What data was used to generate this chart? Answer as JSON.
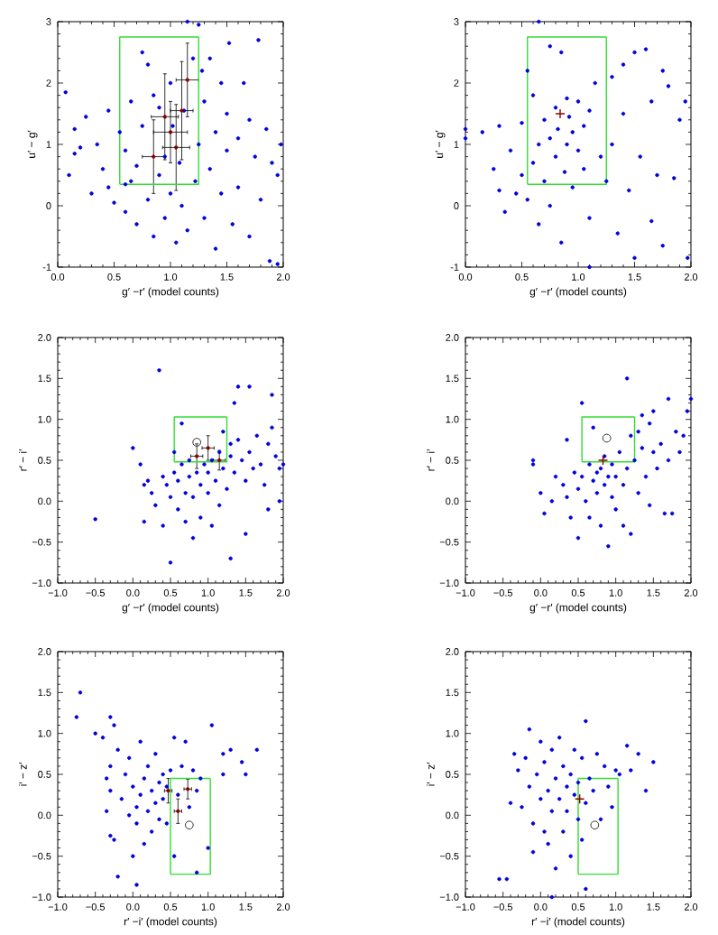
{
  "chart_data": [
    {
      "type": "scatter",
      "xlabel": "g′ −r′ (model counts)",
      "ylabel": "u′ − g′",
      "xlim": [
        0,
        2
      ],
      "ylim": [
        -1,
        3
      ],
      "xticks": [
        {
          "value": 0,
          "label": "0.0"
        },
        {
          "value": 0.5,
          "label": "0.5"
        },
        {
          "value": 1,
          "label": "1.0"
        },
        {
          "value": 1.5,
          "label": "1.5"
        },
        {
          "value": 2,
          "label": "2.0"
        }
      ],
      "yticks": [
        -1,
        0,
        1,
        2,
        3
      ],
      "series": [
        {
          "type": "scatter",
          "color": "#0000dd",
          "marker": "circle",
          "x": [
            0.07,
            0.15,
            0.15,
            0.2,
            0.1,
            0.25,
            0.3,
            0.35,
            0.4,
            0.45,
            0.45,
            0.5,
            0.55,
            0.6,
            0.6,
            0.65,
            0.65,
            0.7,
            0.7,
            0.75,
            0.75,
            0.8,
            0.8,
            0.85,
            0.85,
            0.9,
            0.9,
            0.95,
            0.95,
            1.0,
            1.0,
            1.02,
            1.05,
            1.08,
            1.1,
            1.12,
            1.15,
            1.2,
            1.22,
            1.25,
            1.28,
            1.3,
            1.3,
            1.35,
            1.35,
            1.4,
            1.4,
            1.45,
            1.45,
            1.5,
            1.5,
            1.52,
            1.55,
            1.6,
            1.6,
            1.65,
            1.7,
            1.7,
            1.75,
            1.78,
            1.8,
            1.85,
            1.88,
            1.9,
            1.95,
            1.98,
            1.15,
            1.25,
            1.95,
            0.6
          ],
          "values": [
            1.85,
            1.25,
            0.85,
            0.95,
            0.5,
            1.45,
            0.2,
            1.0,
            0.6,
            1.55,
            0.3,
            0.05,
            1.2,
            0.9,
            -0.1,
            1.7,
            0.4,
            -0.3,
            0.65,
            1.3,
            2.5,
            0.1,
            2.3,
            1.8,
            -0.5,
            0.5,
            1.6,
            0.8,
            -0.2,
            0.2,
            2.0,
            1.3,
            -0.6,
            0.7,
            0.0,
            1.55,
            -0.4,
            2.4,
            0.4,
            1.0,
            2.2,
            -0.2,
            1.7,
            0.6,
            2.4,
            1.2,
            -0.7,
            2.0,
            0.2,
            1.5,
            0.9,
            2.65,
            -0.3,
            1.1,
            0.3,
            2.0,
            1.4,
            -0.5,
            0.8,
            2.7,
            0.1,
            1.25,
            -0.9,
            0.7,
            0.5,
            1.0,
            3.0,
            2.95,
            -0.95,
            0.35
          ]
        },
        {
          "type": "scatter",
          "color": "#8b0000",
          "marker": "circle",
          "x": [
            0.85,
            0.95,
            1.05,
            1.15,
            1.0,
            1.1
          ],
          "values": [
            0.8,
            1.45,
            0.95,
            2.05,
            1.2,
            1.55
          ],
          "errors": [
            0.6,
            0.7,
            0.7,
            0.6,
            0.5,
            0.8
          ],
          "xerrors": [
            0.1,
            0.12,
            0.12,
            0.1,
            0.15,
            0.1
          ]
        },
        {
          "type": "line",
          "color": "#33dd33",
          "x": [
            0.55,
            1.25,
            1.25
          ],
          "values": [
            0.35,
            0.35,
            2.75
          ]
        },
        {
          "type": "line",
          "color": "#33dd33",
          "x": [
            1.25,
            0.55,
            0.55
          ],
          "values": [
            2.75,
            2.75,
            0.35
          ]
        }
      ]
    },
    {
      "type": "scatter",
      "xlabel": "g′ −r′ (model counts)",
      "ylabel": "u′ − g′",
      "xlim": [
        0,
        2
      ],
      "ylim": [
        -1,
        3
      ],
      "xticks": [
        {
          "value": 0,
          "label": "0.0"
        },
        {
          "value": 0.5,
          "label": "0.5"
        },
        {
          "value": 1,
          "label": "1.0"
        },
        {
          "value": 1.5,
          "label": "1.5"
        },
        {
          "value": 2,
          "label": "2.0"
        }
      ],
      "yticks": [
        -1,
        0,
        1,
        2,
        3
      ],
      "series": [
        {
          "type": "scatter",
          "color": "#0000dd",
          "marker": "circle",
          "x": [
            0.0,
            0.0,
            0.15,
            0.25,
            0.3,
            0.3,
            0.35,
            0.4,
            0.45,
            0.5,
            0.5,
            0.55,
            0.55,
            0.6,
            0.6,
            0.65,
            0.65,
            0.7,
            0.7,
            0.75,
            0.75,
            0.75,
            0.8,
            0.8,
            0.82,
            0.85,
            0.85,
            0.88,
            0.9,
            0.9,
            0.92,
            0.95,
            0.95,
            1.0,
            1.0,
            1.05,
            1.05,
            1.1,
            1.1,
            1.15,
            1.2,
            1.25,
            1.3,
            1.3,
            1.35,
            1.4,
            1.4,
            1.45,
            1.5,
            1.5,
            1.55,
            1.6,
            1.65,
            1.65,
            1.7,
            1.75,
            1.75,
            1.8,
            1.85,
            1.9,
            1.95,
            1.97,
            0.65,
            1.1
          ],
          "values": [
            1.25,
            1.1,
            1.2,
            0.6,
            0.25,
            1.3,
            -0.1,
            0.9,
            0.2,
            1.35,
            0.5,
            2.2,
            0.1,
            1.8,
            0.7,
            1.0,
            -0.3,
            1.4,
            0.4,
            2.6,
            1.1,
            0.0,
            1.6,
            0.8,
            1.25,
            2.5,
            -0.6,
            0.55,
            1.75,
            1.0,
            1.45,
            0.3,
            1.2,
            1.7,
            0.9,
            1.3,
            0.6,
            1.55,
            -0.2,
            2.0,
            0.8,
            0.4,
            2.1,
            1.0,
            -0.45,
            1.5,
            2.3,
            0.25,
            2.5,
            -0.85,
            0.8,
            2.55,
            1.7,
            -0.25,
            0.5,
            2.2,
            -0.65,
            1.95,
            0.45,
            1.4,
            1.7,
            -0.85,
            3.0,
            -1.0
          ]
        },
        {
          "type": "scatter",
          "color": "#8b0000",
          "marker": "cross",
          "x": [
            0.84
          ],
          "values": [
            1.5
          ]
        },
        {
          "type": "line",
          "color": "#33dd33",
          "x": [
            0.55,
            1.25,
            1.25
          ],
          "values": [
            0.35,
            0.35,
            2.75
          ]
        },
        {
          "type": "line",
          "color": "#33dd33",
          "x": [
            1.25,
            0.55,
            0.55
          ],
          "values": [
            2.75,
            2.75,
            0.35
          ]
        }
      ]
    },
    {
      "type": "scatter",
      "xlabel": "g′ −r′ (model counts)",
      "ylabel": "r′ − i′",
      "xlim": [
        -1,
        2
      ],
      "ylim": [
        -1,
        2
      ],
      "xticks": [
        {
          "value": -1,
          "label": "−1.0"
        },
        {
          "value": -0.5,
          "label": "−0.5"
        },
        {
          "value": 0,
          "label": "0.0"
        },
        {
          "value": 0.5,
          "label": "0.5"
        },
        {
          "value": 1,
          "label": "1.0"
        },
        {
          "value": 1.5,
          "label": "1.5"
        },
        {
          "value": 2,
          "label": "2.0"
        }
      ],
      "yticks": [
        {
          "value": -1,
          "label": "−1.0"
        },
        {
          "value": -0.5,
          "label": "−0.5"
        },
        {
          "value": 0,
          "label": "0.0"
        },
        {
          "value": 0.5,
          "label": "0.5"
        },
        {
          "value": 1,
          "label": "1.0"
        },
        {
          "value": 1.5,
          "label": "1.5"
        },
        {
          "value": 2,
          "label": "2.0"
        }
      ],
      "series": [
        {
          "type": "scatter",
          "color": "#0000dd",
          "marker": "circle",
          "x": [
            -0.5,
            0.0,
            0.1,
            0.15,
            0.15,
            0.25,
            0.3,
            0.35,
            0.4,
            0.4,
            0.45,
            0.5,
            0.5,
            0.55,
            0.6,
            0.6,
            0.65,
            0.65,
            0.7,
            0.7,
            0.75,
            0.75,
            0.8,
            0.8,
            0.85,
            0.9,
            0.9,
            0.95,
            1.0,
            1.0,
            1.05,
            1.05,
            1.1,
            1.15,
            1.15,
            1.2,
            1.25,
            1.3,
            1.3,
            1.35,
            1.35,
            1.4,
            1.4,
            1.45,
            1.5,
            1.5,
            1.55,
            1.55,
            1.6,
            1.65,
            1.7,
            1.75,
            1.8,
            1.85,
            1.85,
            1.9,
            1.95,
            1.95,
            2.0,
            1.8,
            1.3,
            1.2,
            0.2,
            0.55
          ],
          "values": [
            -0.22,
            0.65,
            0.45,
            0.2,
            -0.25,
            0.1,
            -0.05,
            1.6,
            0.3,
            -0.3,
            0.2,
            -0.75,
            0.05,
            0.35,
            0.25,
            -0.1,
            0.95,
            0.45,
            0.1,
            -0.25,
            0.5,
            0.3,
            0.05,
            -0.45,
            0.35,
            0.2,
            -0.2,
            0.45,
            0.1,
            0.35,
            -0.3,
            0.5,
            0.25,
            0.6,
            -0.05,
            0.4,
            0.15,
            0.55,
            -0.7,
            1.2,
            0.35,
            1.4,
            0.75,
            0.5,
            0.25,
            -0.4,
            1.4,
            0.6,
            0.4,
            0.8,
            0.45,
            0.2,
            0.7,
            1.3,
            0.9,
            0.55,
            0.0,
            0.4,
            0.45,
            -0.1,
            0.7,
            0.85,
            0.25,
            0.6
          ]
        },
        {
          "type": "scatter",
          "color": "#8b0000",
          "marker": "circle",
          "x": [
            0.85,
            1.0,
            1.15
          ],
          "values": [
            0.55,
            0.65,
            0.5
          ],
          "errors": [
            0.15,
            0.15,
            0.12
          ],
          "xerrors": [
            0.08,
            0.08,
            0.08
          ]
        },
        {
          "type": "scatter",
          "color": "#333333",
          "marker": "circle",
          "x": [
            0.85
          ],
          "values": [
            0.72
          ]
        },
        {
          "type": "line",
          "color": "#33dd33",
          "x": [
            0.55,
            1.25,
            1.25
          ],
          "values": [
            0.48,
            0.48,
            1.03
          ]
        },
        {
          "type": "line",
          "color": "#33dd33",
          "x": [
            1.25,
            0.55,
            0.55
          ],
          "values": [
            1.03,
            1.03,
            0.48
          ]
        }
      ]
    },
    {
      "type": "scatter",
      "xlabel": "g′ −r′ (model counts)",
      "ylabel": "r′ − i′",
      "xlim": [
        -1,
        2
      ],
      "ylim": [
        -1,
        2
      ],
      "xticks": [
        {
          "value": -1,
          "label": "−1.0"
        },
        {
          "value": -0.5,
          "label": "−0.5"
        },
        {
          "value": 0,
          "label": "0.0"
        },
        {
          "value": 0.5,
          "label": "0.5"
        },
        {
          "value": 1,
          "label": "1.0"
        },
        {
          "value": 1.5,
          "label": "1.5"
        },
        {
          "value": 2,
          "label": "2.0"
        }
      ],
      "yticks": [
        {
          "value": -1,
          "label": "−1.0"
        },
        {
          "value": -0.5,
          "label": "−0.5"
        },
        {
          "value": 0,
          "label": "0.0"
        },
        {
          "value": 0.5,
          "label": "0.5"
        },
        {
          "value": 1,
          "label": "1.0"
        },
        {
          "value": 1.5,
          "label": "1.5"
        },
        {
          "value": 2,
          "label": "2.0"
        }
      ],
      "series": [
        {
          "type": "scatter",
          "color": "#0000dd",
          "marker": "circle",
          "x": [
            -0.1,
            -0.1,
            0.0,
            0.05,
            0.15,
            0.2,
            0.3,
            0.35,
            0.35,
            0.4,
            0.45,
            0.5,
            0.5,
            0.55,
            0.55,
            0.6,
            0.65,
            0.65,
            0.7,
            0.7,
            0.75,
            0.75,
            0.8,
            0.8,
            0.85,
            0.85,
            0.9,
            0.9,
            0.95,
            0.95,
            1.0,
            1.0,
            1.05,
            1.1,
            1.1,
            1.15,
            1.15,
            1.2,
            1.2,
            1.25,
            1.3,
            1.35,
            1.35,
            1.4,
            1.45,
            1.45,
            1.5,
            1.5,
            1.55,
            1.6,
            1.65,
            1.7,
            1.7,
            1.75,
            1.8,
            1.85,
            1.9,
            1.95,
            2.0,
            1.3
          ],
          "values": [
            0.5,
            0.45,
            0.1,
            -0.15,
            0.0,
            0.3,
            0.2,
            0.75,
            0.05,
            -0.2,
            0.35,
            -0.45,
            0.15,
            1.2,
            0.3,
            0.0,
            0.45,
            -0.2,
            0.25,
            0.9,
            0.35,
            0.1,
            0.4,
            -0.3,
            0.2,
            0.55,
            -0.55,
            0.3,
            0.45,
            0.05,
            0.3,
            -0.1,
            0.6,
            0.2,
            -0.3,
            1.5,
            0.4,
            -0.4,
            0.8,
            0.5,
            0.1,
            1.05,
            0.65,
            0.3,
            -0.05,
            0.95,
            0.6,
            1.1,
            0.4,
            0.7,
            -0.15,
            1.25,
            0.5,
            -0.15,
            0.85,
            0.6,
            0.8,
            1.1,
            1.25,
            0.85
          ]
        },
        {
          "type": "scatter",
          "color": "#8b0000",
          "marker": "cross",
          "x": [
            0.83
          ],
          "values": [
            0.5
          ]
        },
        {
          "type": "scatter",
          "color": "#333333",
          "marker": "circle",
          "x": [
            0.88
          ],
          "values": [
            0.77
          ]
        },
        {
          "type": "line",
          "color": "#33dd33",
          "x": [
            0.55,
            1.25,
            1.25
          ],
          "values": [
            0.48,
            0.48,
            1.03
          ]
        },
        {
          "type": "line",
          "color": "#33dd33",
          "x": [
            1.25,
            0.55,
            0.55
          ],
          "values": [
            1.03,
            1.03,
            0.48
          ]
        }
      ]
    },
    {
      "type": "scatter",
      "xlabel": "r′ −i′ (model counts)",
      "ylabel": "i′ − z′",
      "xlim": [
        -1,
        2
      ],
      "ylim": [
        -1,
        2
      ],
      "xticks": [
        {
          "value": -1,
          "label": "−1.0"
        },
        {
          "value": -0.5,
          "label": "−0.5"
        },
        {
          "value": 0,
          "label": "0.0"
        },
        {
          "value": 0.5,
          "label": "0.5"
        },
        {
          "value": 1,
          "label": "1.0"
        },
        {
          "value": 1.5,
          "label": "1.5"
        },
        {
          "value": 2,
          "label": "2.0"
        }
      ],
      "yticks": [
        {
          "value": -1,
          "label": "−1.0"
        },
        {
          "value": -0.5,
          "label": "−0.5"
        },
        {
          "value": 0,
          "label": "0.0"
        },
        {
          "value": 0.5,
          "label": "0.5"
        },
        {
          "value": 1,
          "label": "1.0"
        },
        {
          "value": 1.5,
          "label": "1.5"
        },
        {
          "value": 2,
          "label": "2.0"
        }
      ],
      "series": [
        {
          "type": "scatter",
          "color": "#0000dd",
          "marker": "circle",
          "x": [
            -0.7,
            -0.75,
            -0.5,
            -0.4,
            -0.3,
            -0.25,
            -0.2,
            -0.3,
            -0.35,
            -0.3,
            -0.25,
            -0.3,
            -0.35,
            -0.2,
            -0.15,
            -0.1,
            -0.05,
            0.0,
            0.0,
            0.05,
            0.05,
            0.1,
            0.1,
            0.15,
            0.15,
            0.2,
            0.2,
            0.25,
            0.25,
            0.3,
            0.3,
            0.35,
            0.35,
            0.4,
            0.4,
            0.45,
            0.45,
            0.5,
            0.55,
            0.55,
            0.6,
            0.65,
            0.7,
            0.75,
            0.8,
            0.85,
            0.85,
            0.9,
            1.0,
            1.05,
            1.2,
            1.2,
            1.3,
            1.45,
            1.5,
            1.65,
            0.05,
            -0.05
          ],
          "values": [
            1.5,
            1.2,
            1.0,
            0.95,
            1.2,
            1.1,
            0.8,
            0.6,
            0.45,
            0.3,
            -0.3,
            -0.25,
            0.05,
            -0.75,
            0.2,
            0.5,
            0.7,
            0.35,
            -0.5,
            0.1,
            -0.1,
            0.9,
            0.25,
            -0.35,
            0.45,
            0.05,
            0.6,
            -0.2,
            0.3,
            0.75,
            0.15,
            -0.05,
            0.4,
            0.5,
            0.2,
            -0.1,
            0.35,
            0.55,
            0.95,
            -0.5,
            0.25,
            0.6,
            0.9,
            0.1,
            0.55,
            0.3,
            -0.7,
            0.45,
            -0.4,
            1.1,
            0.75,
            0.5,
            0.8,
            0.65,
            0.5,
            0.8,
            -0.85,
            0.0
          ]
        },
        {
          "type": "scatter",
          "color": "#8b0000",
          "marker": "circle",
          "x": [
            0.47,
            0.6,
            0.73
          ],
          "values": [
            0.3,
            0.05,
            0.32
          ],
          "errors": [
            0.15,
            0.15,
            0.12
          ],
          "xerrors": [
            0.05,
            0.05,
            0.05
          ]
        },
        {
          "type": "scatter",
          "color": "#333333",
          "marker": "circle",
          "x": [
            0.75
          ],
          "values": [
            -0.12
          ]
        },
        {
          "type": "line",
          "color": "#33dd33",
          "x": [
            0.5,
            1.03,
            1.03
          ],
          "values": [
            -0.72,
            -0.72,
            0.45
          ]
        },
        {
          "type": "line",
          "color": "#33dd33",
          "x": [
            1.03,
            0.5,
            0.5
          ],
          "values": [
            0.45,
            0.45,
            -0.72
          ]
        }
      ]
    },
    {
      "type": "scatter",
      "xlabel": "r′ −i′ (model counts)",
      "ylabel": "i′ − z′",
      "xlim": [
        -1,
        2
      ],
      "ylim": [
        -1,
        2
      ],
      "xticks": [
        {
          "value": -1,
          "label": "−1.0"
        },
        {
          "value": -0.5,
          "label": "−0.5"
        },
        {
          "value": 0,
          "label": "0.0"
        },
        {
          "value": 0.5,
          "label": "0.5"
        },
        {
          "value": 1,
          "label": "1.0"
        },
        {
          "value": 1.5,
          "label": "1.5"
        },
        {
          "value": 2,
          "label": "2.0"
        }
      ],
      "yticks": [
        {
          "value": -1,
          "label": "−1.0"
        },
        {
          "value": -0.5,
          "label": "−0.5"
        },
        {
          "value": 0,
          "label": "0.0"
        },
        {
          "value": 0.5,
          "label": "0.5"
        },
        {
          "value": 1,
          "label": "1.0"
        },
        {
          "value": 1.5,
          "label": "1.5"
        },
        {
          "value": 2,
          "label": "2.0"
        }
      ],
      "series": [
        {
          "type": "scatter",
          "color": "#0000dd",
          "marker": "circle",
          "x": [
            -0.55,
            -0.45,
            -0.4,
            -0.35,
            -0.3,
            -0.25,
            -0.2,
            -0.15,
            -0.15,
            -0.1,
            -0.1,
            -0.05,
            0.0,
            0.0,
            0.05,
            0.05,
            0.1,
            0.1,
            0.15,
            0.15,
            0.2,
            0.2,
            0.25,
            0.25,
            0.3,
            0.3,
            0.35,
            0.35,
            0.4,
            0.4,
            0.45,
            0.45,
            0.5,
            0.5,
            0.55,
            0.55,
            0.6,
            0.6,
            0.65,
            0.7,
            0.75,
            0.8,
            0.85,
            0.9,
            0.95,
            1.0,
            1.05,
            1.15,
            1.2,
            1.3,
            1.5,
            1.4,
            0.6,
            0.15
          ],
          "values": [
            -0.78,
            -0.78,
            0.15,
            0.75,
            0.55,
            0.1,
            0.7,
            0.35,
            1.05,
            -0.1,
            -0.45,
            0.5,
            0.9,
            0.2,
            -0.2,
            0.65,
            0.3,
            -0.35,
            0.8,
            0.05,
            0.45,
            -0.65,
            0.2,
            0.95,
            0.6,
            -0.2,
            0.35,
            0.05,
            0.5,
            -0.5,
            0.25,
            0.8,
            0.4,
            -0.05,
            0.7,
            -0.3,
            1.15,
            0.15,
            0.45,
            0.3,
            0.75,
            -0.05,
            0.6,
            0.35,
            0.1,
            0.55,
            0.5,
            0.85,
            0.55,
            0.75,
            0.65,
            0.3,
            -0.9,
            -1.0
          ]
        },
        {
          "type": "scatter",
          "color": "#8b0000",
          "marker": "cross",
          "x": [
            0.52
          ],
          "values": [
            0.2
          ]
        },
        {
          "type": "scatter",
          "color": "#333333",
          "marker": "circle",
          "x": [
            0.72
          ],
          "values": [
            -0.12
          ]
        },
        {
          "type": "line",
          "color": "#33dd33",
          "x": [
            0.5,
            1.03,
            1.03
          ],
          "values": [
            -0.72,
            -0.72,
            0.45
          ]
        },
        {
          "type": "line",
          "color": "#33dd33",
          "x": [
            1.03,
            0.5,
            0.5
          ],
          "values": [
            0.45,
            0.45,
            -0.72
          ]
        }
      ]
    }
  ]
}
